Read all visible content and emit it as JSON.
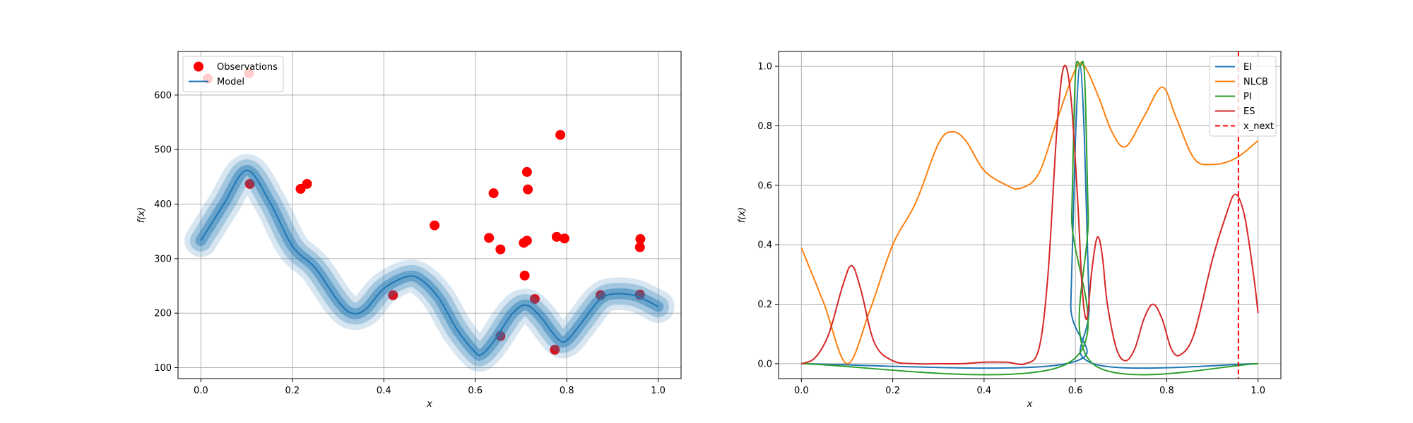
{
  "chart_data": [
    {
      "type": "scatter",
      "title": "",
      "xlabel": "x",
      "ylabel": "f(x)",
      "xlim": [
        -0.05,
        1.05
      ],
      "ylim": [
        80,
        680
      ],
      "grid": true,
      "legend": "top-left",
      "xticks": [
        "0.0",
        "0.2",
        "0.4",
        "0.6",
        "0.8",
        "1.0"
      ],
      "yticks": [
        "100",
        "200",
        "300",
        "400",
        "500",
        "600"
      ],
      "series": [
        {
          "name": "Observations",
          "color": "#ff0000",
          "type": "scatter",
          "x": [
            0.015,
            0.105,
            0.107,
            0.218,
            0.232,
            0.42,
            0.511,
            0.63,
            0.64,
            0.655,
            0.655,
            0.706,
            0.708,
            0.713,
            0.713,
            0.715,
            0.73,
            0.774,
            0.778,
            0.786,
            0.795,
            0.874,
            0.96,
            0.96,
            0.961
          ],
          "y": [
            630,
            640,
            437,
            428,
            437,
            233,
            361,
            338,
            420,
            317,
            158,
            329,
            269,
            333,
            459,
            427,
            226,
            133,
            340,
            527,
            337,
            233,
            234,
            321,
            336
          ]
        },
        {
          "name": "Model",
          "color": "#1f77b4",
          "type": "line",
          "x": [
            0.0,
            0.05,
            0.1,
            0.15,
            0.2,
            0.25,
            0.3,
            0.33,
            0.36,
            0.4,
            0.45,
            0.48,
            0.52,
            0.56,
            0.6,
            0.615,
            0.64,
            0.68,
            0.71,
            0.74,
            0.78,
            0.8,
            0.83,
            0.87,
            0.9,
            0.95,
            1.0
          ],
          "y": [
            333,
            400,
            462,
            405,
            323,
            283,
            222,
            200,
            207,
            245,
            267,
            262,
            228,
            170,
            128,
            125,
            148,
            198,
            215,
            196,
            153,
            150,
            180,
            223,
            235,
            232,
            212
          ],
          "band": 10
        }
      ]
    },
    {
      "type": "line",
      "title": "",
      "xlabel": "x",
      "ylabel": "f(x)",
      "xlim": [
        -0.05,
        1.05
      ],
      "ylim": [
        -0.05,
        1.05
      ],
      "grid": true,
      "legend": "top-right",
      "xticks": [
        "0.0",
        "0.2",
        "0.4",
        "0.6",
        "0.8",
        "1.0"
      ],
      "yticks": [
        "0.0",
        "0.2",
        "0.4",
        "0.6",
        "0.8",
        "1.0"
      ],
      "series": [
        {
          "name": "EI",
          "color": "#1f77b4",
          "x": [
            0.0,
            0.58,
            0.59,
            0.6,
            0.61,
            0.62,
            0.63,
            0.64,
            1.0
          ],
          "y": [
            0.0,
            0.0,
            0.2,
            0.75,
            1.0,
            0.75,
            0.2,
            0.0,
            0.0
          ]
        },
        {
          "name": "NLCB",
          "color": "#ff7f0e",
          "x": [
            0.0,
            0.05,
            0.1,
            0.15,
            0.2,
            0.25,
            0.3,
            0.33,
            0.36,
            0.4,
            0.45,
            0.48,
            0.52,
            0.56,
            0.6,
            0.62,
            0.65,
            0.68,
            0.71,
            0.75,
            0.79,
            0.82,
            0.86,
            0.9,
            0.95,
            1.0
          ],
          "y": [
            0.39,
            0.2,
            0.0,
            0.18,
            0.4,
            0.54,
            0.74,
            0.78,
            0.75,
            0.65,
            0.6,
            0.59,
            0.64,
            0.82,
            0.99,
            1.0,
            0.9,
            0.78,
            0.73,
            0.83,
            0.93,
            0.83,
            0.69,
            0.67,
            0.69,
            0.75
          ]
        },
        {
          "name": "PI",
          "color": "#2ca02c",
          "x": [
            0.0,
            0.582,
            0.592,
            0.6,
            0.61,
            0.62,
            0.628,
            0.638,
            1.0
          ],
          "y": [
            0.0,
            0.0,
            0.5,
            0.97,
            1.0,
            0.97,
            0.5,
            0.0,
            0.0
          ]
        },
        {
          "name": "ES",
          "color": "#d62728",
          "x": [
            0.0,
            0.03,
            0.06,
            0.09,
            0.11,
            0.13,
            0.16,
            0.2,
            0.25,
            0.3,
            0.35,
            0.4,
            0.45,
            0.49,
            0.52,
            0.54,
            0.56,
            0.575,
            0.59,
            0.605,
            0.615,
            0.625,
            0.635,
            0.645,
            0.652,
            0.66,
            0.67,
            0.69,
            0.71,
            0.73,
            0.75,
            0.77,
            0.79,
            0.81,
            0.83,
            0.86,
            0.9,
            0.93,
            0.95,
            0.97,
            0.99,
            1.0
          ],
          "y": [
            0.0,
            0.02,
            0.1,
            0.26,
            0.33,
            0.25,
            0.07,
            0.01,
            0.0,
            0.0,
            0.0,
            0.005,
            0.005,
            0.0,
            0.05,
            0.3,
            0.8,
            1.0,
            0.9,
            0.55,
            0.25,
            0.15,
            0.3,
            0.41,
            0.42,
            0.35,
            0.2,
            0.05,
            0.01,
            0.05,
            0.15,
            0.2,
            0.15,
            0.05,
            0.03,
            0.1,
            0.35,
            0.5,
            0.57,
            0.5,
            0.3,
            0.17
          ]
        },
        {
          "name": "x_next",
          "color": "#ff0000",
          "type": "vline",
          "x": 0.957
        }
      ]
    }
  ]
}
